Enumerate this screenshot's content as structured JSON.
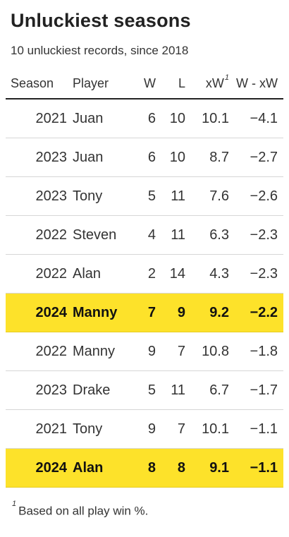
{
  "title": "Unluckiest seasons",
  "subtitle": "10 unluckiest records, since 2018",
  "columns": {
    "season": "Season",
    "player": "Player",
    "w": "W",
    "l": "L",
    "xw": "xW",
    "xw_note": "1",
    "diff": "W - xW"
  },
  "highlight_color": "#fde22a",
  "rows": [
    {
      "season": "2021",
      "player": "Juan",
      "w": "6",
      "l": "10",
      "xw": "10.1",
      "diff": "−4.1",
      "highlight": false
    },
    {
      "season": "2023",
      "player": "Juan",
      "w": "6",
      "l": "10",
      "xw": "8.7",
      "diff": "−2.7",
      "highlight": false
    },
    {
      "season": "2023",
      "player": "Tony",
      "w": "5",
      "l": "11",
      "xw": "7.6",
      "diff": "−2.6",
      "highlight": false
    },
    {
      "season": "2022",
      "player": "Steven",
      "w": "4",
      "l": "11",
      "xw": "6.3",
      "diff": "−2.3",
      "highlight": false
    },
    {
      "season": "2022",
      "player": "Alan",
      "w": "2",
      "l": "14",
      "xw": "4.3",
      "diff": "−2.3",
      "highlight": false
    },
    {
      "season": "2024",
      "player": "Manny",
      "w": "7",
      "l": "9",
      "xw": "9.2",
      "diff": "−2.2",
      "highlight": true
    },
    {
      "season": "2022",
      "player": "Manny",
      "w": "9",
      "l": "7",
      "xw": "10.8",
      "diff": "−1.8",
      "highlight": false
    },
    {
      "season": "2023",
      "player": "Drake",
      "w": "5",
      "l": "11",
      "xw": "6.7",
      "diff": "−1.7",
      "highlight": false
    },
    {
      "season": "2021",
      "player": "Tony",
      "w": "9",
      "l": "7",
      "xw": "10.1",
      "diff": "−1.1",
      "highlight": false
    },
    {
      "season": "2024",
      "player": "Alan",
      "w": "8",
      "l": "8",
      "xw": "9.1",
      "diff": "−1.1",
      "highlight": true
    }
  ],
  "footnote": {
    "marker": "1",
    "text": "Based on all play win %."
  }
}
